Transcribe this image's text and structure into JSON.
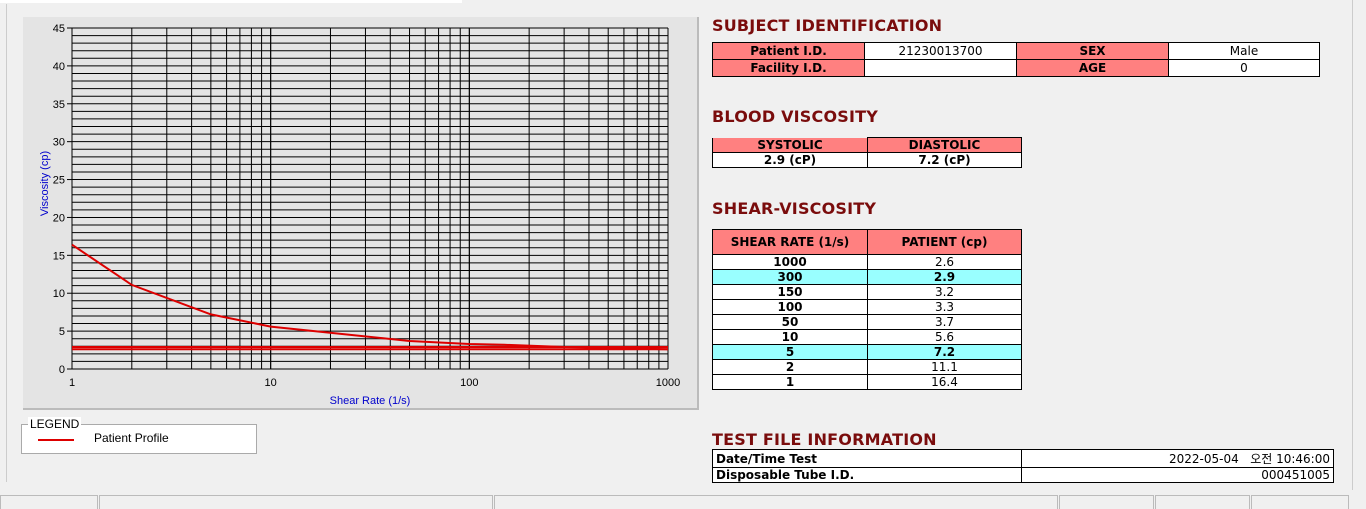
{
  "chart_data": {
    "type": "line",
    "xlabel": "Shear Rate (1/s)",
    "ylabel": "Viscosity (cp)",
    "xscale": "log",
    "xlim": [
      1,
      1000
    ],
    "ylim": [
      0,
      45
    ],
    "xticks": [
      "1",
      "10",
      "100",
      "1000"
    ],
    "yticks": [
      "0",
      "5",
      "10",
      "15",
      "20",
      "25",
      "30",
      "35",
      "40",
      "45"
    ],
    "grid": true,
    "series": [
      {
        "name": "Patient Profile",
        "color": "#dd0000",
        "x": [
          1,
          2,
          5,
          10,
          50,
          100,
          150,
          300,
          1000
        ],
        "y": [
          16.4,
          11.1,
          7.2,
          5.6,
          3.7,
          3.3,
          3.2,
          2.9,
          2.6
        ]
      }
    ],
    "reference_lines": [
      2.9,
      2.6
    ],
    "legend": {
      "title": "LEGEND",
      "entries": [
        "Patient Profile"
      ],
      "placement": "bottom-left"
    }
  },
  "subject": {
    "title": "SUBJECT IDENTIFICATION",
    "patient_id_label": "Patient I.D.",
    "patient_id": "21230013700",
    "sex_label": "SEX",
    "sex": "Male",
    "facility_label": "Facility I.D.",
    "facility": "",
    "age_label": "AGE",
    "age": "0"
  },
  "blood": {
    "title": "BLOOD VISCOSITY",
    "systolic_label": "SYSTOLIC",
    "diastolic_label": "DIASTOLIC",
    "systolic": "2.9 (cP)",
    "diastolic": "7.2 (cP)"
  },
  "shear": {
    "title": "SHEAR-VISCOSITY",
    "col1": "SHEAR RATE (1/s)",
    "col2": "PATIENT (cp)",
    "rows": [
      {
        "rate": "1000",
        "v": "2.6"
      },
      {
        "rate": "300",
        "v": "2.9",
        "hl": true
      },
      {
        "rate": "150",
        "v": "3.2"
      },
      {
        "rate": "100",
        "v": "3.3"
      },
      {
        "rate": "50",
        "v": "3.7"
      },
      {
        "rate": "10",
        "v": "5.6"
      },
      {
        "rate": "5",
        "v": "7.2",
        "hl": true
      },
      {
        "rate": "2",
        "v": "11.1"
      },
      {
        "rate": "1",
        "v": "16.4"
      }
    ]
  },
  "testfile": {
    "title": "TEST FILE INFORMATION",
    "date_label": "Date/Time Test",
    "date": "2022-05-04   오전 10:46:00",
    "tube_label": "Disposable Tube I.D.",
    "tube": "000451005"
  }
}
